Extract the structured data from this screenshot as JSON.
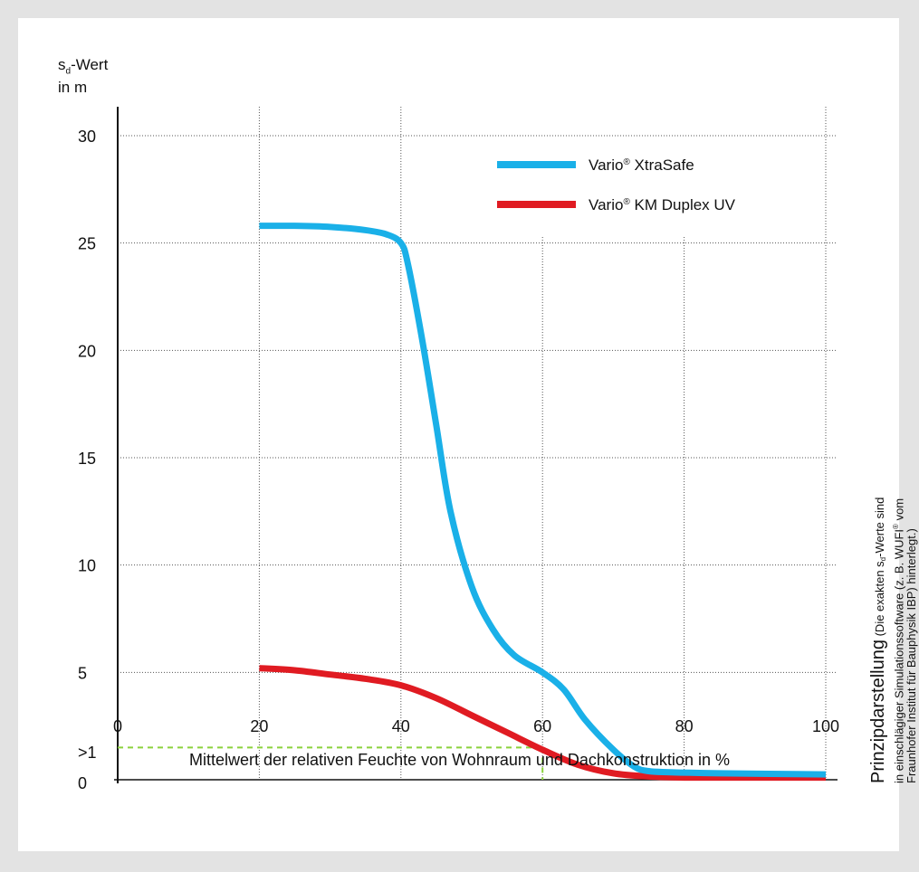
{
  "chart_data": {
    "type": "line",
    "ylabel_line1_main": "s",
    "ylabel_line1_sub": "d",
    "ylabel_line1_rest": "-Wert",
    "ylabel_line2": "in m",
    "xlabel": "Mittelwert der relativen Feuchte von Wohnraum und Dachkonstruktion in %",
    "xlim": [
      0,
      100
    ],
    "ylim": [
      0,
      31
    ],
    "x_ticks": [
      "0",
      "20",
      "40",
      "60",
      "80",
      "100"
    ],
    "y_ticks": [
      {
        "label": "30",
        "value": 30
      },
      {
        "label": "25",
        "value": 25
      },
      {
        "label": "20",
        "value": 20
      },
      {
        "label": "15",
        "value": 15
      },
      {
        "label": "10",
        "value": 10
      },
      {
        "label": "5",
        "value": 5
      },
      {
        "label": ">1",
        "value": 1.5
      },
      {
        "label": "0",
        "value": 0
      }
    ],
    "grid": true,
    "legend_position": "top-right",
    "series": [
      {
        "name": "Vario® XtraSafe",
        "color": "#1ab0e8",
        "x": [
          20,
          25,
          30,
          35,
          38,
          40,
          41,
          43,
          45,
          47,
          50,
          53,
          56,
          60,
          63,
          66,
          70,
          73,
          75,
          78,
          85,
          100
        ],
        "y": [
          25.8,
          25.8,
          25.75,
          25.6,
          25.4,
          25.0,
          24.0,
          20.5,
          16.5,
          12.5,
          9.0,
          7.0,
          5.8,
          5.0,
          4.2,
          2.8,
          1.4,
          0.6,
          0.4,
          0.35,
          0.3,
          0.25
        ]
      },
      {
        "name": "Vario® KM Duplex UV",
        "color": "#e01b22",
        "x": [
          20,
          25,
          30,
          35,
          40,
          45,
          50,
          55,
          60,
          65,
          70,
          75,
          80,
          90,
          100
        ],
        "y": [
          5.2,
          5.1,
          4.9,
          4.7,
          4.4,
          3.8,
          3.0,
          2.2,
          1.4,
          0.7,
          0.3,
          0.15,
          0.1,
          0.1,
          0.1
        ]
      }
    ],
    "reference": {
      "x": 60,
      "y": 1.5,
      "color": "#8bd23c"
    }
  },
  "legend": {
    "items": [
      {
        "brand": "Vario",
        "mark": "®",
        "rest": " XtraSafe"
      },
      {
        "brand": "Vario",
        "mark": "®",
        "rest": " KM Duplex UV"
      }
    ]
  },
  "note": {
    "title": "Prinzipdarstellung",
    "line1_a": " (Die exakten s",
    "line1_sub": "d",
    "line1_b": "-Werte sind",
    "line2_a": "in einschlägiger Simulationssoftware (z. B. WUFI",
    "line2_mark": "®",
    "line2_b": " vom",
    "line3": "Fraunhofer Institut für Bauphysik IBP) hinterlegt.)"
  }
}
